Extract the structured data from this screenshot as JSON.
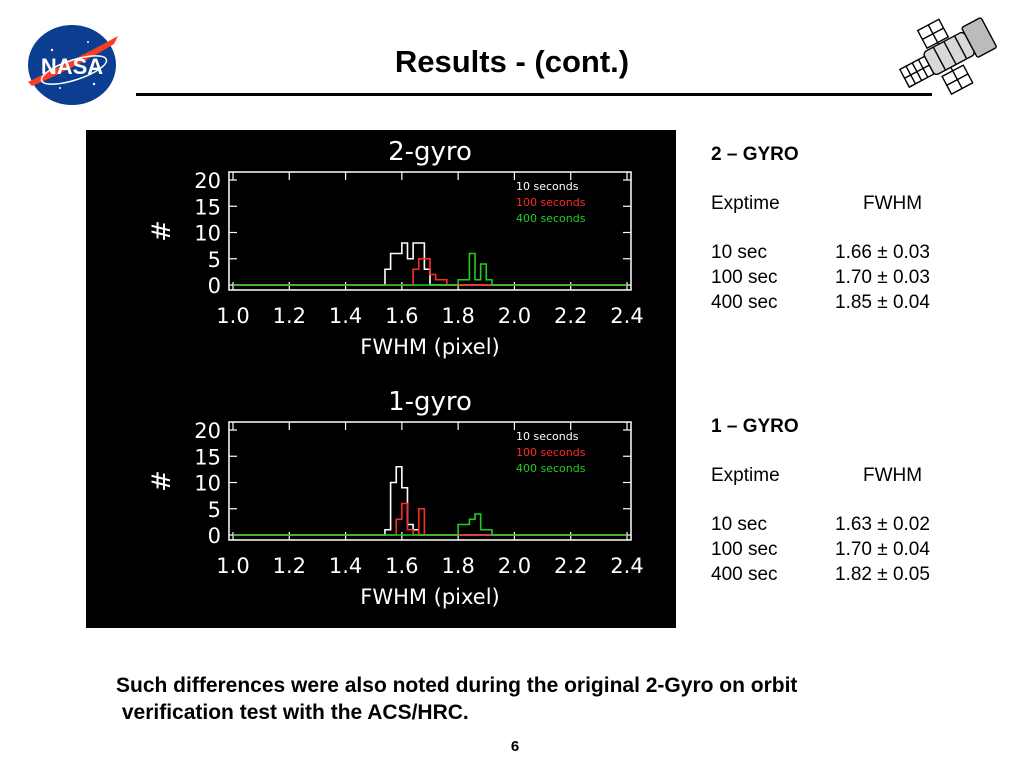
{
  "slide": {
    "title": "Results - (cont.)",
    "caption_line1": "Such differences were also noted during the original 2-Gyro on orbit",
    "caption_line2": " verification test with the ACS/HRC.",
    "page_number": "6",
    "logo_text": "NASA"
  },
  "stats": [
    {
      "heading": "2 – GYRO",
      "col_exptime": "Exptime",
      "col_fwhm": "FWHM",
      "rows": [
        {
          "exptime": "10 sec",
          "fwhm": "1.66 ± 0.03"
        },
        {
          "exptime": "100 sec",
          "fwhm": "1.70 ± 0.03"
        },
        {
          "exptime": "400 sec",
          "fwhm": "1.85 ± 0.04"
        }
      ]
    },
    {
      "heading": "1 – GYRO",
      "col_exptime": "Exptime",
      "col_fwhm": "FWHM",
      "rows": [
        {
          "exptime": "10 sec",
          "fwhm": "1.63 ± 0.02"
        },
        {
          "exptime": "100 sec",
          "fwhm": "1.70 ± 0.04"
        },
        {
          "exptime": "400 sec",
          "fwhm": "1.82 ± 0.05"
        }
      ]
    }
  ],
  "colors": {
    "panel_background": "#000000",
    "axis": "#ffffff",
    "series_10": "#ffffff",
    "series_100": "#ff2a2a",
    "series_400": "#22cc22"
  },
  "chart_data": [
    {
      "type": "histogram",
      "title": "2-gyro",
      "xlabel": "FWHM (pixel)",
      "ylabel": "#",
      "xlim": [
        1.0,
        2.4
      ],
      "ylim": [
        0,
        20
      ],
      "xticks": [
        "1.0",
        "1.2",
        "1.4",
        "1.6",
        "1.8",
        "2.0",
        "2.2",
        "2.4"
      ],
      "yticks": [
        "0",
        "5",
        "10",
        "15",
        "20"
      ],
      "legend_position": "top-right",
      "bin_edges": [
        1.5,
        1.52,
        1.54,
        1.56,
        1.58,
        1.6,
        1.62,
        1.64,
        1.66,
        1.68,
        1.7,
        1.72,
        1.74,
        1.76,
        1.78,
        1.8,
        1.82,
        1.84,
        1.86,
        1.88,
        1.9,
        1.92,
        1.94
      ],
      "series": [
        {
          "name": "10 seconds",
          "color": "#ffffff",
          "counts": [
            0,
            0,
            3,
            6,
            6,
            8,
            5,
            8,
            8,
            3,
            0,
            0,
            0,
            0,
            0,
            0,
            0,
            0,
            0,
            0,
            0,
            0
          ]
        },
        {
          "name": "100 seconds",
          "color": "#ff2a2a",
          "counts": [
            0,
            0,
            0,
            0,
            0,
            0,
            0,
            3,
            5,
            5,
            2,
            1,
            1,
            0,
            0,
            0,
            0,
            0,
            0,
            0,
            0,
            0
          ]
        },
        {
          "name": "400 seconds",
          "color": "#22cc22",
          "counts": [
            0,
            0,
            0,
            0,
            0,
            0,
            0,
            0,
            0,
            0,
            0,
            0,
            0,
            0,
            0,
            1,
            1,
            6,
            1,
            4,
            1,
            0
          ]
        }
      ]
    },
    {
      "type": "histogram",
      "title": "1-gyro",
      "xlabel": "FWHM (pixel)",
      "ylabel": "#",
      "xlim": [
        1.0,
        2.4
      ],
      "ylim": [
        0,
        20
      ],
      "xticks": [
        "1.0",
        "1.2",
        "1.4",
        "1.6",
        "1.8",
        "2.0",
        "2.2",
        "2.4"
      ],
      "yticks": [
        "0",
        "5",
        "10",
        "15",
        "20"
      ],
      "legend_position": "top-right",
      "bin_edges": [
        1.5,
        1.52,
        1.54,
        1.56,
        1.58,
        1.6,
        1.62,
        1.64,
        1.66,
        1.68,
        1.7,
        1.72,
        1.74,
        1.76,
        1.78,
        1.8,
        1.82,
        1.84,
        1.86,
        1.88,
        1.9,
        1.92,
        1.94
      ],
      "series": [
        {
          "name": "10 seconds",
          "color": "#ffffff",
          "counts": [
            0,
            0,
            1,
            10,
            13,
            9,
            2,
            1,
            0,
            0,
            0,
            0,
            0,
            0,
            0,
            0,
            0,
            0,
            0,
            0,
            0,
            0
          ]
        },
        {
          "name": "100 seconds",
          "color": "#ff2a2a",
          "counts": [
            0,
            0,
            0,
            0,
            3,
            6,
            1,
            0,
            5,
            0,
            0,
            0,
            0,
            0,
            0,
            0,
            0,
            0,
            0,
            0,
            0,
            0
          ]
        },
        {
          "name": "400 seconds",
          "color": "#22cc22",
          "counts": [
            0,
            0,
            0,
            0,
            0,
            0,
            0,
            0,
            0,
            0,
            0,
            0,
            0,
            0,
            0,
            2,
            2,
            3,
            4,
            1,
            1,
            0
          ]
        }
      ]
    }
  ]
}
